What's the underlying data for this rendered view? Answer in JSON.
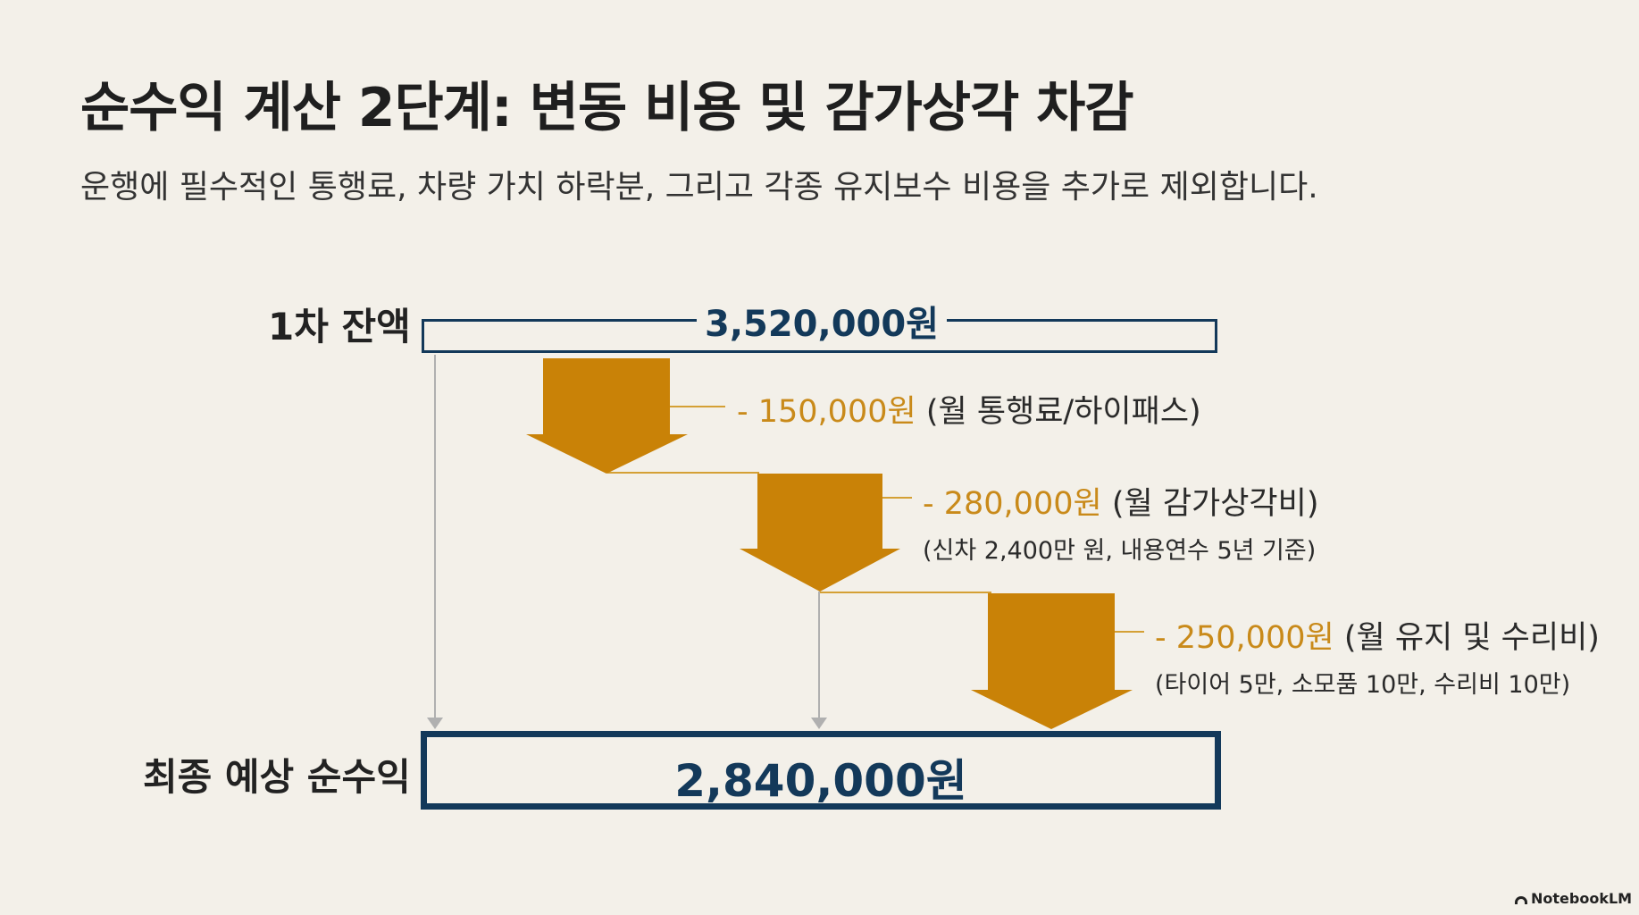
{
  "title": "순수익 계산 2단계: 변동 비용 및 감가상각 차감",
  "subtitle": "운행에 필수적인 통행료, 차량 가치 하락분, 그리고 각종 유지보수 비용을 추가로 제외합니다.",
  "start": {
    "label": "1차 잔액",
    "value": "3,520,000원"
  },
  "deductions": [
    {
      "amount": "- 150,000원",
      "desc": "(월 통행료/하이패스)",
      "note": ""
    },
    {
      "amount": "- 280,000원",
      "desc": "(월 감가상각비)",
      "note": "(신차 2,400만 원, 내용연수 5년 기준)"
    },
    {
      "amount": "- 250,000원",
      "desc": "(월 유지 및 수리비)",
      "note": "(타이어 5만, 소모품 10만, 수리비 10만)"
    }
  ],
  "final": {
    "label": "최종 예상 순수익",
    "value": "2,840,000원"
  },
  "brand": "NotebookLM",
  "colors": {
    "background": "#f3f0e9",
    "navy": "#13395a",
    "arrow": "#c98207",
    "amount": "#c98a1a",
    "connector": "#b0b0b0"
  }
}
